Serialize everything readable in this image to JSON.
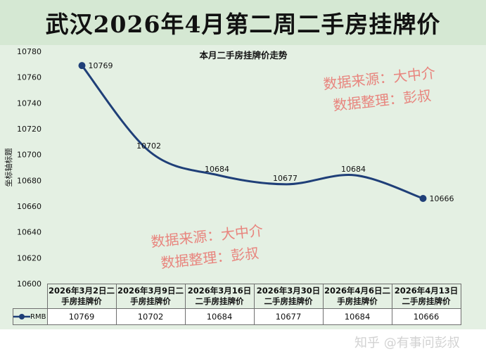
{
  "banner": {
    "title": "武汉2026年4月第二周二手房挂牌价"
  },
  "chart_data": {
    "type": "line",
    "title": "本月二手房挂牌价走势",
    "ylabel": "坐标轴标题",
    "xlabel": "",
    "categories": [
      "2026年3月2日二手房挂牌价",
      "2026年3月9日二手房挂牌价",
      "2026年3月16日二手房挂牌价",
      "2026年3月30日二手房挂牌价",
      "2026年4月6日二手房挂牌价",
      "2026年4月13日二手房挂牌价"
    ],
    "series": [
      {
        "name": "RMB",
        "values": [
          10769,
          10702,
          10684,
          10677,
          10684,
          10666
        ]
      }
    ],
    "ylim": [
      10600,
      10780
    ],
    "yticks": [
      10600,
      10620,
      10640,
      10660,
      10680,
      10700,
      10720,
      10740,
      10760,
      10780
    ],
    "grid": false,
    "legend": "data-table",
    "line_color": "#1f3f78"
  },
  "table": {
    "series_label": "RMB",
    "headers": [
      [
        "2026年3月2日二",
        "手房挂牌价"
      ],
      [
        "2026年3月9日二",
        "手房挂牌价"
      ],
      [
        "2026年3月16日",
        "二手房挂牌价"
      ],
      [
        "2026年3月30日",
        "二手房挂牌价"
      ],
      [
        "2026年4月6日二",
        "手房挂牌价"
      ],
      [
        "2026年4月13日",
        "二手房挂牌价"
      ]
    ],
    "values": [
      "10769",
      "10702",
      "10684",
      "10677",
      "10684",
      "10666"
    ]
  },
  "watermarks": {
    "top_line1": "数据来源：大中介",
    "top_line2": "数据整理：彭叔",
    "bottom_line1": "数据来源：大中介",
    "bottom_line2": "数据整理：彭叔",
    "zhihu": "知乎 @有事问彭叔"
  }
}
